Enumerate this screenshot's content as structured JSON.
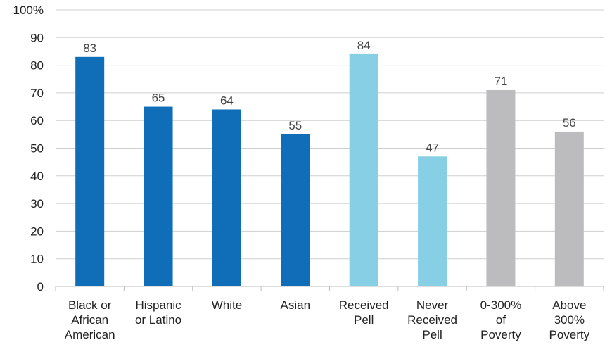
{
  "chart_data": {
    "type": "bar",
    "title": "",
    "xlabel": "",
    "ylabel": "",
    "ylim": [
      0,
      100
    ],
    "yticks": [
      0,
      10,
      20,
      30,
      40,
      50,
      60,
      70,
      80,
      90,
      100
    ],
    "ytick_labels": [
      "0",
      "10",
      "20",
      "30",
      "40",
      "50",
      "60",
      "70",
      "80",
      "90",
      "100%"
    ],
    "grid": true,
    "legend": "none",
    "categories": [
      [
        "Black or",
        "African",
        "American"
      ],
      [
        "Hispanic",
        "or Latino"
      ],
      [
        "White"
      ],
      [
        "Asian"
      ],
      [
        "Received",
        "Pell"
      ],
      [
        "Never",
        "Received",
        "Pell"
      ],
      [
        "0-300%",
        "of",
        "Poverty"
      ],
      [
        "Above",
        "300%",
        "Poverty"
      ]
    ],
    "values": [
      83,
      65,
      64,
      55,
      84,
      47,
      71,
      56
    ],
    "colors": [
      "#106eb8",
      "#106eb8",
      "#106eb8",
      "#106eb8",
      "#86cfe4",
      "#86cfe4",
      "#bcbcbe",
      "#bcbcbe"
    ]
  }
}
